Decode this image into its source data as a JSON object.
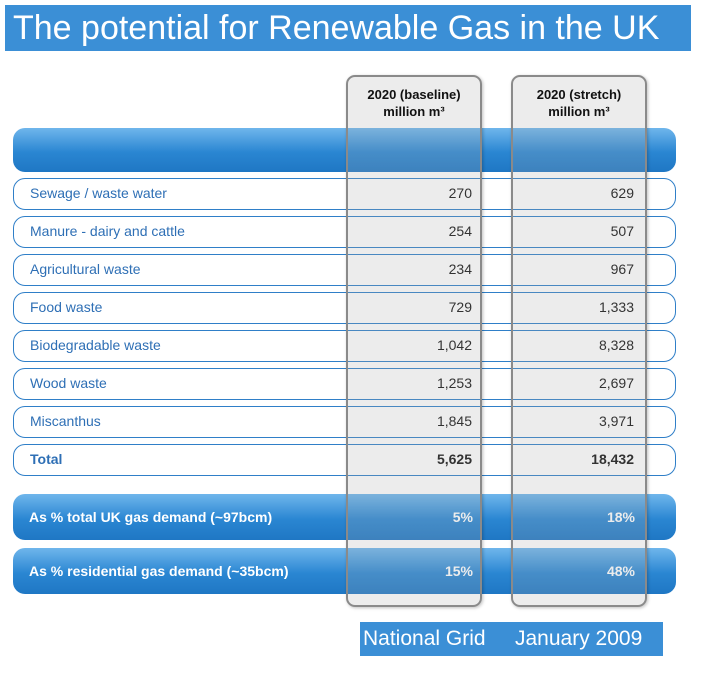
{
  "header": {
    "title": "The potential for Renewable Gas in the UK"
  },
  "columns": [
    {
      "line1": "2020 (baseline)",
      "line2": "million m³"
    },
    {
      "line1": "2020 (stretch)",
      "line2": "million m³"
    }
  ],
  "table": {
    "rows": [
      [
        "Sewage / waste water",
        "270",
        "629"
      ],
      [
        "Manure - dairy and cattle",
        "254",
        "507"
      ],
      [
        "Agricultural waste",
        "234",
        "967"
      ],
      [
        "Food waste",
        "729",
        "1,333"
      ],
      [
        "Biodegradable waste",
        "1,042",
        "8,328"
      ],
      [
        "Wood waste",
        "1,253",
        "2,697"
      ],
      [
        "Miscanthus",
        "1,845",
        "3,971"
      ]
    ],
    "total": [
      "Total",
      "5,625",
      "18,432"
    ],
    "share_rows": [
      [
        "As % total UK gas demand (~97bcm)",
        "5%",
        "18%"
      ],
      [
        "As % residential gas demand (~35bcm)",
        "15%",
        "48%"
      ]
    ]
  },
  "footer": [
    "National Grid",
    "January 2009"
  ]
}
